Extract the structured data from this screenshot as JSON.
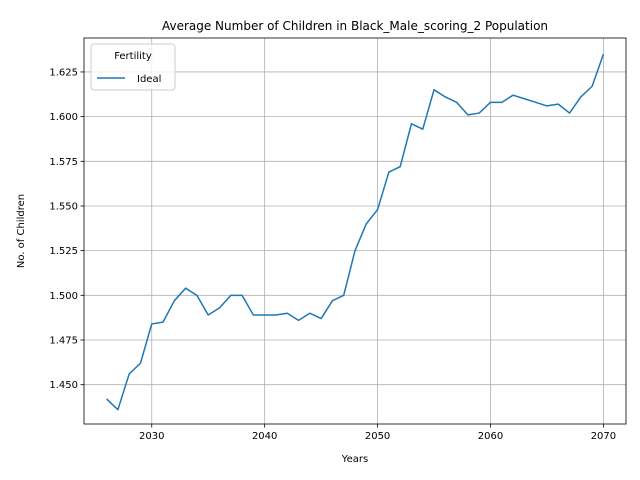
{
  "chart_data": {
    "type": "line",
    "title": "Average Number of Children in Black_Male_scoring_2 Population",
    "xlabel": "Years",
    "ylabel": "No. of Children",
    "xlim": [
      2024,
      2072
    ],
    "ylim": [
      1.428,
      1.644
    ],
    "xticks": [
      2030,
      2040,
      2050,
      2060,
      2070
    ],
    "xtick_labels": [
      "2030",
      "2040",
      "2050",
      "2060",
      "2070"
    ],
    "yticks": [
      1.45,
      1.475,
      1.5,
      1.525,
      1.55,
      1.575,
      1.6,
      1.625
    ],
    "ytick_labels": [
      "1.450",
      "1.475",
      "1.500",
      "1.525",
      "1.550",
      "1.575",
      "1.600",
      "1.625"
    ],
    "grid": true,
    "legend": {
      "title": "Fertility",
      "position": "upper-left"
    },
    "series": [
      {
        "name": "Ideal",
        "color": "#1f77b4",
        "x": [
          2026,
          2027,
          2028,
          2029,
          2030,
          2031,
          2032,
          2033,
          2034,
          2035,
          2036,
          2037,
          2038,
          2039,
          2040,
          2041,
          2042,
          2043,
          2044,
          2045,
          2046,
          2047,
          2048,
          2049,
          2050,
          2051,
          2052,
          2053,
          2054,
          2055,
          2056,
          2057,
          2058,
          2059,
          2060,
          2061,
          2062,
          2063,
          2064,
          2065,
          2066,
          2067,
          2068,
          2069,
          2070
        ],
        "values": [
          1.442,
          1.436,
          1.456,
          1.462,
          1.484,
          1.485,
          1.497,
          1.504,
          1.5,
          1.489,
          1.493,
          1.5,
          1.5,
          1.489,
          1.489,
          1.489,
          1.49,
          1.486,
          1.49,
          1.487,
          1.497,
          1.5,
          1.525,
          1.54,
          1.548,
          1.569,
          1.572,
          1.596,
          1.593,
          1.615,
          1.611,
          1.608,
          1.601,
          1.602,
          1.608,
          1.608,
          1.612,
          1.61,
          1.608,
          1.606,
          1.607,
          1.602,
          1.611,
          1.617,
          1.635
        ]
      }
    ]
  }
}
